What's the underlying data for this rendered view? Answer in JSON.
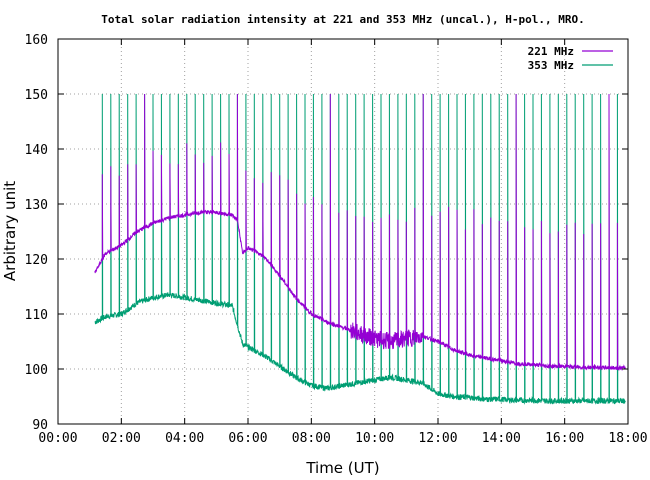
{
  "chart_data": {
    "type": "line",
    "title": "Total solar radiation intensity at 221 and 353 MHz (uncal.), H-pol., MRO.",
    "xlabel": "Time (UT)",
    "ylabel": "Arbitrary unit",
    "xlim": [
      "00:00",
      "18:00"
    ],
    "ylim": [
      90,
      160
    ],
    "grid": true,
    "legend_position": "top-right",
    "x_ticks": [
      "00:00",
      "02:00",
      "04:00",
      "06:00",
      "08:00",
      "10:00",
      "12:00",
      "14:00",
      "16:00",
      "18:00"
    ],
    "y_ticks": [
      "90",
      "100",
      "110",
      "120",
      "130",
      "140",
      "150",
      "160"
    ],
    "series": [
      {
        "name": "221 MHz",
        "color": "#9400d3",
        "x": [
          "01:10",
          "01:30",
          "02:00",
          "02:30",
          "03:00",
          "03:30",
          "04:00",
          "04:30",
          "05:00",
          "05:30",
          "05:40",
          "05:50",
          "06:00",
          "06:30",
          "07:00",
          "07:30",
          "08:00",
          "08:30",
          "09:00",
          "09:30",
          "10:00",
          "10:30",
          "11:00",
          "11:30",
          "12:00",
          "12:30",
          "13:00",
          "13:30",
          "14:00",
          "14:30",
          "15:00",
          "15:30",
          "16:00",
          "16:30",
          "17:00",
          "17:30",
          "17:55"
        ],
        "values": [
          117.5,
          121.0,
          122.5,
          125.0,
          126.5,
          127.5,
          128.0,
          128.5,
          128.5,
          128.0,
          127.0,
          121.0,
          122.0,
          120.5,
          117.0,
          113.0,
          110.0,
          108.5,
          107.5,
          106.5,
          105.5,
          105.0,
          105.5,
          106.0,
          105.0,
          103.5,
          102.5,
          102.0,
          101.5,
          101.0,
          100.8,
          100.5,
          100.5,
          100.3,
          100.3,
          100.2,
          100.2
        ],
        "spike_peak_range": [
          124,
          140
        ]
      },
      {
        "name": "353 MHz",
        "color": "#009e73",
        "x": [
          "01:10",
          "01:30",
          "02:00",
          "02:30",
          "03:00",
          "03:30",
          "04:00",
          "04:30",
          "05:00",
          "05:30",
          "05:40",
          "05:50",
          "06:00",
          "06:30",
          "07:00",
          "07:30",
          "08:00",
          "08:30",
          "09:00",
          "09:30",
          "10:00",
          "10:30",
          "11:00",
          "11:30",
          "12:00",
          "12:30",
          "13:00",
          "13:30",
          "14:00",
          "14:30",
          "15:00",
          "15:30",
          "16:00",
          "16:30",
          "17:00",
          "17:30",
          "17:55"
        ],
        "values": [
          108.5,
          109.5,
          110.0,
          112.0,
          113.0,
          113.5,
          113.0,
          112.5,
          112.0,
          111.5,
          108.0,
          104.5,
          104.0,
          102.5,
          100.5,
          98.5,
          97.0,
          96.5,
          97.0,
          97.5,
          98.0,
          98.5,
          98.0,
          97.5,
          95.5,
          95.0,
          94.8,
          94.5,
          94.5,
          94.3,
          94.3,
          94.2,
          94.2,
          94.2,
          94.2,
          94.2,
          94.2
        ],
        "spike_peak": 150
      }
    ],
    "spike_times": [
      "01:24",
      "01:40",
      "01:56",
      "02:12",
      "02:28",
      "02:44",
      "03:00",
      "03:16",
      "03:32",
      "03:48",
      "04:04",
      "04:20",
      "04:36",
      "04:52",
      "05:08",
      "05:24",
      "05:40",
      "05:56",
      "06:12",
      "06:28",
      "06:44",
      "07:00",
      "07:16",
      "07:32",
      "07:48",
      "08:04",
      "08:20",
      "08:36",
      "08:52",
      "09:08",
      "09:24",
      "09:40",
      "09:56",
      "10:12",
      "10:28",
      "10:44",
      "11:00",
      "11:16",
      "11:32",
      "11:48",
      "12:04",
      "12:20",
      "12:36",
      "12:52",
      "13:08",
      "13:24",
      "13:40",
      "13:56",
      "14:12",
      "14:28",
      "14:44",
      "15:00",
      "15:16",
      "15:32",
      "15:48",
      "16:04",
      "16:20",
      "16:36",
      "16:52",
      "17:08",
      "17:24",
      "17:40",
      "17:56"
    ]
  }
}
